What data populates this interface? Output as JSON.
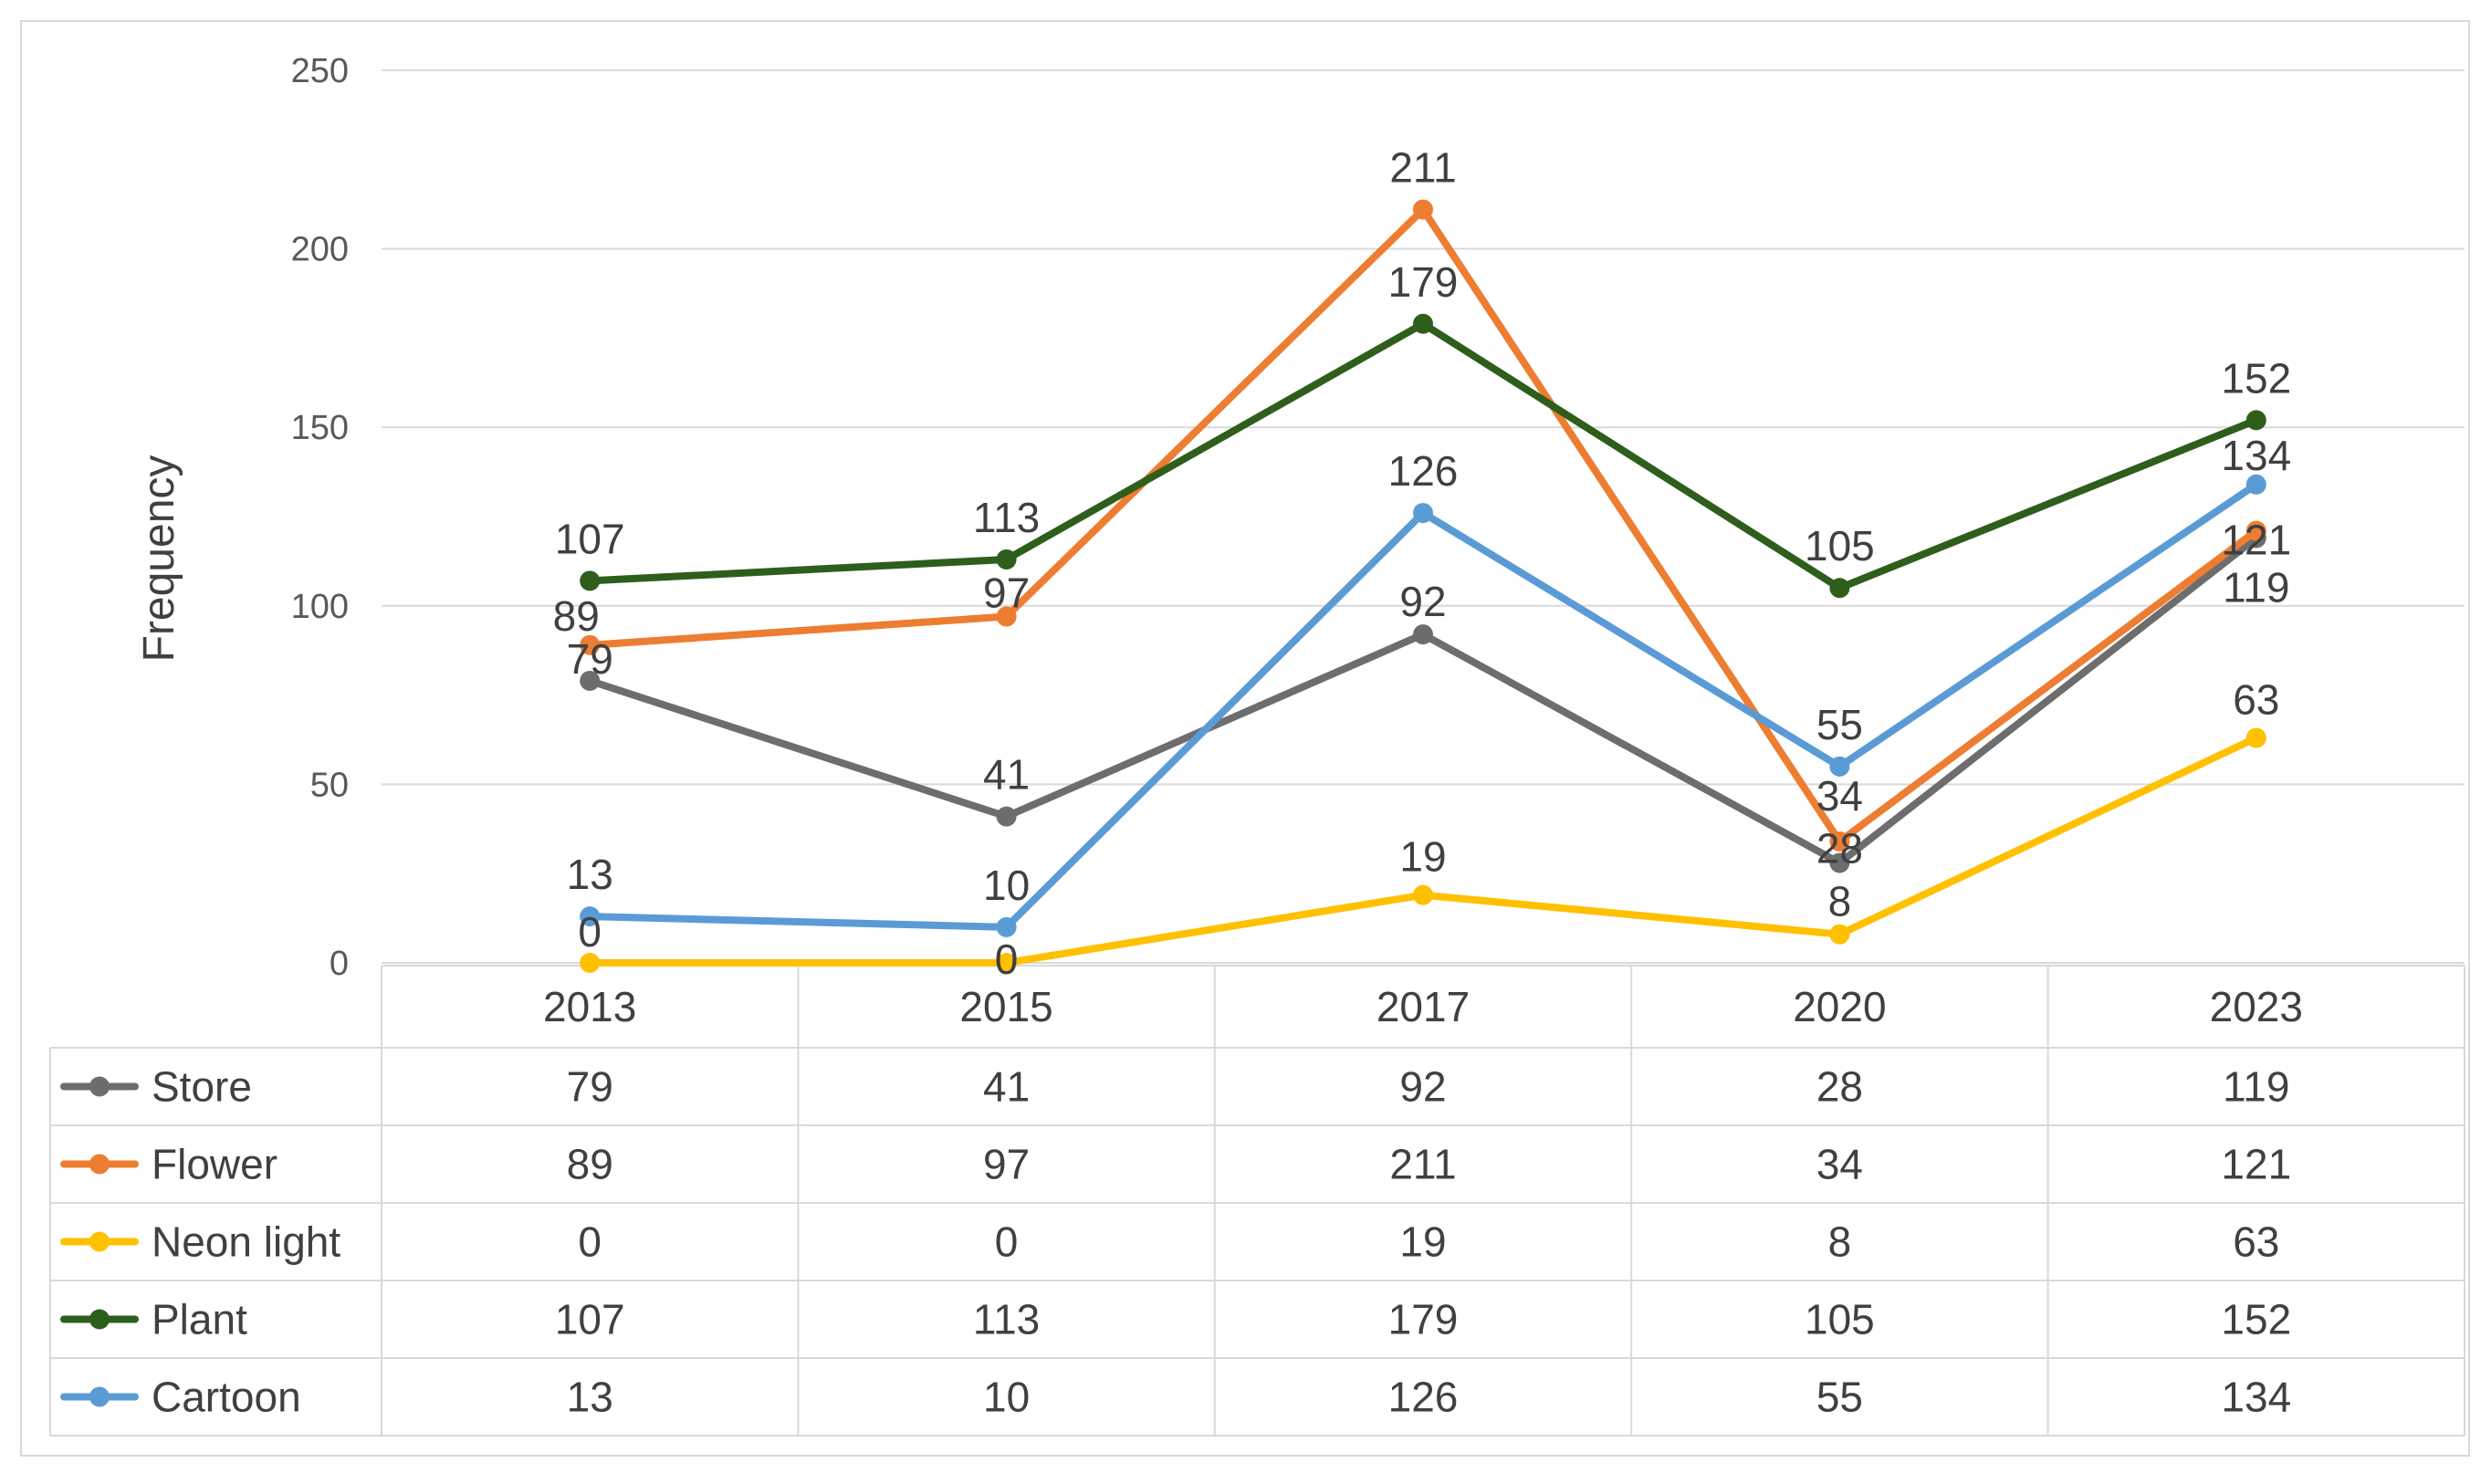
{
  "chart_data": {
    "type": "line",
    "title": "",
    "xlabel": "",
    "ylabel": "Frequency",
    "ylim": [
      0,
      250
    ],
    "yticks": [
      0,
      50,
      100,
      150,
      200,
      250
    ],
    "grid": true,
    "legend": "data-table-left",
    "categories": [
      "2013",
      "2015",
      "2017",
      "2020",
      "2023"
    ],
    "series": [
      {
        "name": "Store",
        "color": "#6d6d6d",
        "values": [
          79,
          41,
          92,
          28,
          119
        ]
      },
      {
        "name": "Flower",
        "color": "#ed7d31",
        "values": [
          89,
          97,
          211,
          34,
          121
        ]
      },
      {
        "name": "Neon light",
        "color": "#ffc000",
        "values": [
          0,
          0,
          19,
          8,
          63
        ]
      },
      {
        "name": "Plant",
        "color": "#2e5e1c",
        "values": [
          107,
          113,
          179,
          105,
          152
        ]
      },
      {
        "name": "Cartoon",
        "color": "#5b9bd5",
        "values": [
          13,
          10,
          126,
          55,
          134
        ]
      }
    ]
  }
}
